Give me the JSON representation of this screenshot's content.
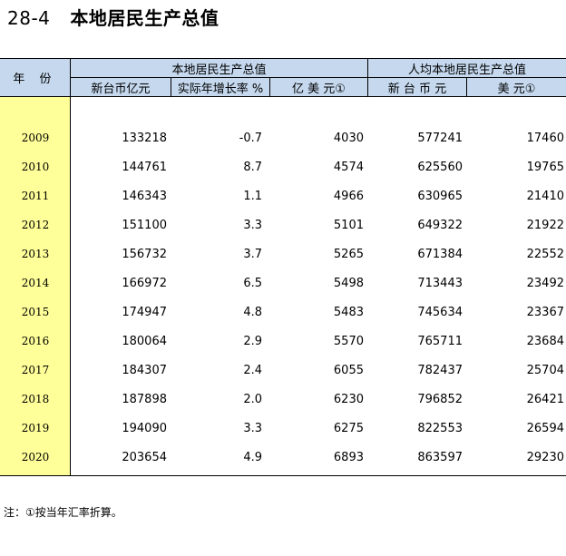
{
  "title": {
    "number": "28-4",
    "text": "本地居民生产总值"
  },
  "header": {
    "year": "年 份",
    "group1": "本地居民生产总值",
    "group2": "人均本地居民生产总值",
    "cols": [
      "新台币亿元",
      "实际年增长率 %",
      "亿 美 元①",
      "新 台 币 元",
      "美 元①"
    ]
  },
  "rows": [
    {
      "year": "2009",
      "ntd100m": "133218",
      "growth": "-0.7",
      "usd100m": "4030",
      "pc_ntd": "577241",
      "pc_usd": "17460"
    },
    {
      "year": "2010",
      "ntd100m": "144761",
      "growth": "8.7",
      "usd100m": "4574",
      "pc_ntd": "625560",
      "pc_usd": "19765"
    },
    {
      "year": "2011",
      "ntd100m": "146343",
      "growth": "1.1",
      "usd100m": "4966",
      "pc_ntd": "630965",
      "pc_usd": "21410"
    },
    {
      "year": "2012",
      "ntd100m": "151100",
      "growth": "3.3",
      "usd100m": "5101",
      "pc_ntd": "649322",
      "pc_usd": "21922"
    },
    {
      "year": "2013",
      "ntd100m": "156732",
      "growth": "3.7",
      "usd100m": "5265",
      "pc_ntd": "671384",
      "pc_usd": "22552"
    },
    {
      "year": "2014",
      "ntd100m": "166972",
      "growth": "6.5",
      "usd100m": "5498",
      "pc_ntd": "713443",
      "pc_usd": "23492"
    },
    {
      "year": "2015",
      "ntd100m": "174947",
      "growth": "4.8",
      "usd100m": "5483",
      "pc_ntd": "745634",
      "pc_usd": "23367"
    },
    {
      "year": "2016",
      "ntd100m": "180064",
      "growth": "2.9",
      "usd100m": "5570",
      "pc_ntd": "765711",
      "pc_usd": "23684"
    },
    {
      "year": "2017",
      "ntd100m": "184307",
      "growth": "2.4",
      "usd100m": "6055",
      "pc_ntd": "782437",
      "pc_usd": "25704"
    },
    {
      "year": "2018",
      "ntd100m": "187898",
      "growth": "2.0",
      "usd100m": "6230",
      "pc_ntd": "796852",
      "pc_usd": "26421"
    },
    {
      "year": "2019",
      "ntd100m": "194090",
      "growth": "3.3",
      "usd100m": "6275",
      "pc_ntd": "822553",
      "pc_usd": "26594"
    },
    {
      "year": "2020",
      "ntd100m": "203654",
      "growth": "4.9",
      "usd100m": "6893",
      "pc_ntd": "863597",
      "pc_usd": "29230"
    }
  ],
  "note": "注：①按当年汇率折算。",
  "colors": {
    "header_bg": "#c5d8ee",
    "year_bg": "#ffff99"
  }
}
